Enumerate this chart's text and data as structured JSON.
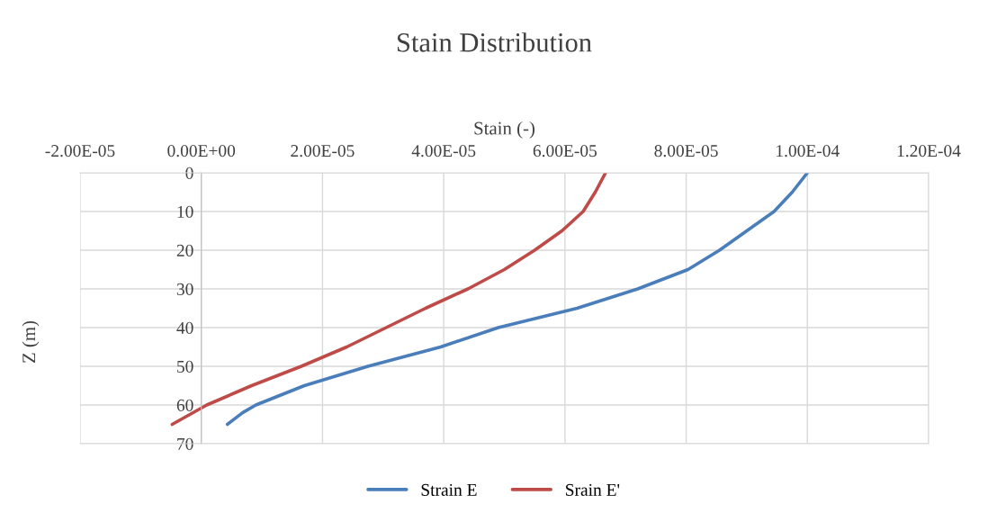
{
  "chart_data": {
    "type": "line",
    "title": "Stain Distribution",
    "xlabel": "Stain (-)",
    "ylabel": "Z (m)",
    "xlim": [
      -2e-05,
      0.00012
    ],
    "xticks": [
      {
        "value": -2e-05,
        "label": "-2.00E-05"
      },
      {
        "value": 0,
        "label": "0.00E+00"
      },
      {
        "value": 2e-05,
        "label": "2.00E-05"
      },
      {
        "value": 4e-05,
        "label": "4.00E-05"
      },
      {
        "value": 6e-05,
        "label": "6.00E-05"
      },
      {
        "value": 8e-05,
        "label": "8.00E-05"
      },
      {
        "value": 0.0001,
        "label": "1.00E-04"
      },
      {
        "value": 0.00012,
        "label": "1.20E-04"
      }
    ],
    "ylim": [
      70,
      0
    ],
    "yticks": [
      0,
      10,
      20,
      30,
      40,
      50,
      60,
      70
    ],
    "grid": true,
    "legend": "bottom",
    "marker": "none",
    "line_style": "solid",
    "series": [
      {
        "name": "Strain E",
        "color": "#4a7ebb",
        "x": [
          0.0001,
          9.75e-05,
          9.45e-05,
          9e-05,
          8.55e-05,
          8.03e-05,
          7.2e-05,
          6.2e-05,
          4.9e-05,
          3.95e-05,
          2.75e-05,
          1.7e-05,
          9e-06,
          6.8e-06,
          4.3e-06
        ],
        "values": [
          0,
          5,
          10,
          15,
          20,
          25,
          30,
          35,
          40,
          45,
          50,
          55,
          60,
          62,
          65
        ]
      },
      {
        "name": "Srain E'",
        "color": "#be4b48",
        "x": [
          6.67e-05,
          6.5e-05,
          6.3e-05,
          5.95e-05,
          5.5e-05,
          5e-05,
          4.4e-05,
          3.7e-05,
          3.05e-05,
          2.4e-05,
          1.65e-05,
          8.3e-06,
          9e-07,
          -4.8e-06
        ],
        "values": [
          0,
          5,
          10,
          15,
          20,
          25,
          30,
          35,
          40,
          45,
          50,
          55,
          60,
          65
        ]
      }
    ]
  }
}
